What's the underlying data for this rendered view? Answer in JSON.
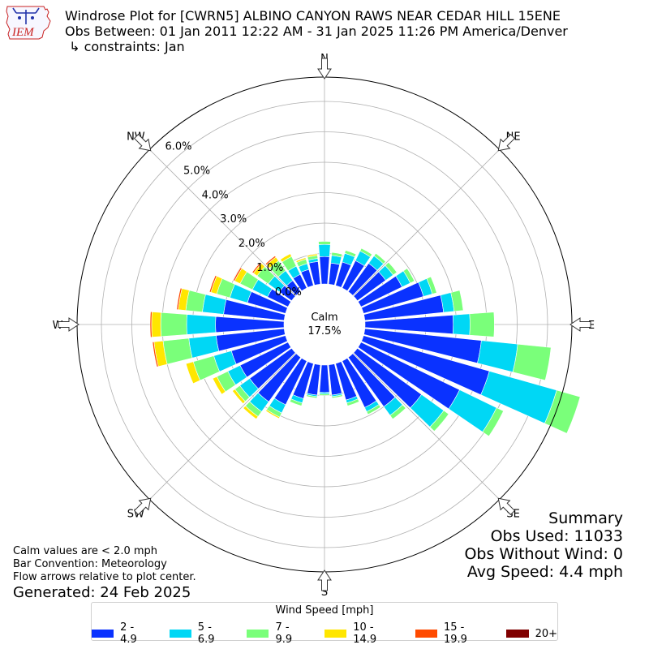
{
  "logo": {
    "text": "IEM"
  },
  "header": {
    "line1": "Windrose Plot for [CWRN5] ALBINO CANYON RAWS NEAR CEDAR HILL 15ENE",
    "line2": "Obs Between: 01 Jan 2011 12:22 AM - 31 Jan 2025 11:26 PM America/Denver",
    "line3": " ↳ constraints: Jan"
  },
  "footer": {
    "notes": [
      "Calm values are < 2.0 mph",
      "Bar Convention: Meteorology",
      "Flow arrows relative to plot center."
    ],
    "generated": "Generated: 24 Feb 2025"
  },
  "summary": {
    "title": "Summary",
    "obs_used": "Obs Used: 11033",
    "obs_without_wind": "Obs Without Wind: 0",
    "avg_speed": "Avg Speed: 4.4 mph"
  },
  "legend": {
    "title": "Wind Speed [mph]",
    "items": [
      {
        "label": "2 - 4.9",
        "color": "#0a32ff"
      },
      {
        "label": "5 - 6.9",
        "color": "#00d7f5"
      },
      {
        "label": "7 - 9.9",
        "color": "#7aff7a"
      },
      {
        "label": "10 - 14.9",
        "color": "#ffe600"
      },
      {
        "label": "15 - 19.9",
        "color": "#ff4a00"
      },
      {
        "label": "20+",
        "color": "#800000"
      }
    ]
  },
  "chart_data": {
    "type": "windrose",
    "calm": {
      "label": "Calm",
      "value": "17.5%"
    },
    "cardinal_labels": [
      "N",
      "NE",
      "E",
      "SE",
      "S",
      "SW",
      "W",
      "NW"
    ],
    "radial_ticks": [
      "0.0%",
      "1.0%",
      "2.0%",
      "3.0%",
      "4.0%",
      "5.0%",
      "6.0%"
    ],
    "radial_range": [
      0,
      6.8
    ],
    "grid": true,
    "series": [
      {
        "name": "2 - 4.9",
        "color": "#0a32ff",
        "values": [
          0.9,
          0.7,
          0.8,
          1.0,
          1.15,
          1.15,
          1.5,
          2.05,
          2.6,
          2.9,
          3.85,
          4.3,
          3.6,
          2.6,
          2.0,
          1.7,
          1.25,
          1.0,
          0.9,
          1.0,
          1.2,
          1.6,
          1.8,
          1.7,
          1.75,
          1.85,
          2.25,
          2.25,
          2.0,
          1.3,
          0.75,
          0.5,
          0.45,
          0.5,
          0.55,
          0.75
        ]
      },
      {
        "name": "5 - 6.9",
        "color": "#00d7f5",
        "values": [
          0.4,
          0.25,
          0.3,
          0.35,
          0.3,
          0.3,
          0.3,
          0.3,
          0.35,
          0.55,
          1.2,
          2.3,
          1.35,
          0.9,
          0.35,
          0.15,
          0.1,
          0.05,
          0.05,
          0.05,
          0.15,
          0.3,
          0.4,
          0.4,
          0.45,
          0.6,
          0.9,
          0.95,
          0.7,
          0.6,
          0.55,
          0.45,
          0.4,
          0.3,
          0.2,
          0.1
        ]
      },
      {
        "name": "7 - 9.9",
        "color": "#7aff7a",
        "values": [
          0.1,
          0.1,
          0.1,
          0.1,
          0.1,
          0.15,
          0.15,
          0.15,
          0.3,
          0.8,
          1.1,
          0.8,
          0.25,
          0.2,
          0.15,
          0.1,
          0.1,
          0.05,
          0.05,
          0.05,
          0.1,
          0.15,
          0.2,
          0.2,
          0.4,
          0.7,
          0.85,
          0.85,
          0.55,
          0.45,
          0.45,
          0.45,
          0.4,
          0.35,
          0.15,
          0.1
        ]
      },
      {
        "name": "10 - 14.9",
        "color": "#ffe600",
        "values": [
          0,
          0,
          0,
          0,
          0,
          0,
          0,
          0,
          0,
          0,
          0,
          0,
          0,
          0,
          0,
          0,
          0,
          0,
          0,
          0,
          0,
          0.05,
          0.1,
          0.1,
          0.15,
          0.25,
          0.3,
          0.3,
          0.25,
          0.2,
          0.2,
          0.15,
          0.15,
          0.1,
          0.05,
          0.05
        ]
      },
      {
        "name": "15 - 19.9",
        "color": "#ff4a00",
        "values": [
          0,
          0,
          0,
          0,
          0,
          0,
          0,
          0,
          0,
          0,
          0,
          0,
          0,
          0,
          0,
          0,
          0,
          0,
          0,
          0,
          0,
          0,
          0,
          0,
          0,
          0,
          0.05,
          0.05,
          0.05,
          0.05,
          0.05,
          0.05,
          0.05,
          0,
          0,
          0
        ]
      },
      {
        "name": "20+",
        "color": "#800000",
        "values": [
          0,
          0,
          0,
          0,
          0,
          0,
          0,
          0,
          0,
          0,
          0,
          0,
          0,
          0,
          0,
          0,
          0,
          0,
          0,
          0,
          0,
          0,
          0,
          0,
          0,
          0,
          0,
          0,
          0,
          0,
          0,
          0,
          0,
          0,
          0,
          0
        ]
      }
    ]
  }
}
